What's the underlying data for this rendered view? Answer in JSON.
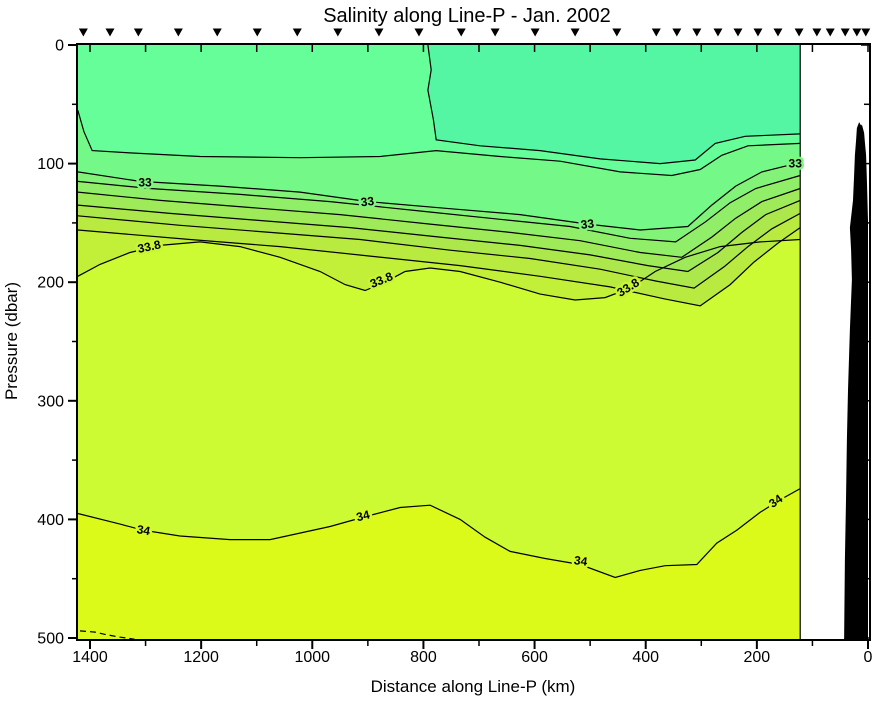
{
  "title": "Salinity along Line-P - Jan. 2002",
  "chart_data": {
    "type": "heatmap",
    "variant": "filled-contour-section",
    "title": "Salinity along Line-P - Jan. 2002",
    "xlabel": "Distance along Line-P (km)",
    "ylabel": "Pressure (dbar)",
    "x_axis": {
      "label": "Distance along Line-P (km)",
      "min": 0,
      "max": 1400,
      "reversed": true,
      "major_ticks": [
        1400,
        1200,
        1000,
        800,
        600,
        400,
        200,
        0
      ],
      "minor_tick_step": 100
    },
    "y_axis": {
      "label": "Pressure (dbar)",
      "min": 0,
      "max": 500,
      "inverted": true,
      "major_ticks": [
        0,
        100,
        200,
        300,
        400,
        500
      ],
      "minor_tick_step": 50
    },
    "grid": false,
    "legend": false,
    "section_data_edge_km": 122,
    "station_markers_km": [
      1412,
      1364,
      1313,
      1241,
      1171,
      1099,
      1027,
      954,
      880,
      808,
      732,
      671,
      599,
      527,
      452,
      381,
      344,
      308,
      270,
      234,
      198,
      162,
      124,
      92,
      68,
      41,
      20,
      4
    ],
    "contour_levels_labeled": [
      "33",
      "33.8",
      "34"
    ],
    "base_fill": "#DCFA1A",
    "contours": [
      {
        "id": "c0",
        "level": "",
        "points": [
          [
            792,
            0
          ],
          [
            786,
            21
          ],
          [
            792,
            38
          ],
          [
            782,
            63
          ],
          [
            777,
            80
          ],
          [
            698,
            85
          ],
          [
            590,
            89
          ],
          [
            482,
            96
          ],
          [
            374,
            100
          ],
          [
            311,
            97
          ],
          [
            275,
            83
          ],
          [
            221,
            77
          ],
          [
            122,
            75
          ]
        ]
      },
      {
        "id": "c1",
        "level": "",
        "points": [
          [
            1422,
            55
          ],
          [
            1411,
            73
          ],
          [
            1396,
            89
          ],
          [
            1328,
            91
          ],
          [
            1202,
            94
          ],
          [
            1022,
            95
          ],
          [
            878,
            94
          ],
          [
            777,
            89
          ],
          [
            662,
            94
          ],
          [
            554,
            98
          ],
          [
            446,
            107
          ],
          [
            353,
            110
          ],
          [
            302,
            105
          ],
          [
            263,
            93
          ],
          [
            216,
            85
          ],
          [
            122,
            83
          ]
        ]
      },
      {
        "id": "c2",
        "level": "33",
        "points": [
          [
            1422,
            107
          ],
          [
            1310,
            115
          ],
          [
            1166,
            119
          ],
          [
            1022,
            124
          ],
          [
            900,
            132
          ],
          [
            752,
            138
          ],
          [
            626,
            143
          ],
          [
            504,
            151
          ],
          [
            410,
            156
          ],
          [
            324,
            153
          ],
          [
            281,
            135
          ],
          [
            238,
            119
          ],
          [
            191,
            107
          ],
          [
            122,
            99
          ]
        ]
      },
      {
        "id": "c3",
        "level": "",
        "points": [
          [
            1422,
            115
          ],
          [
            1292,
            121
          ],
          [
            1130,
            126
          ],
          [
            968,
            132
          ],
          [
            806,
            140
          ],
          [
            662,
            147
          ],
          [
            536,
            153
          ],
          [
            428,
            163
          ],
          [
            346,
            166
          ],
          [
            292,
            149
          ],
          [
            248,
            133
          ],
          [
            202,
            121
          ],
          [
            122,
            110
          ]
        ]
      },
      {
        "id": "c4",
        "level": "",
        "points": [
          [
            1422,
            124
          ],
          [
            1274,
            131
          ],
          [
            1112,
            137
          ],
          [
            950,
            143
          ],
          [
            788,
            151
          ],
          [
            644,
            158
          ],
          [
            518,
            165
          ],
          [
            410,
            175
          ],
          [
            335,
            179
          ],
          [
            281,
            162
          ],
          [
            238,
            146
          ],
          [
            191,
            132
          ],
          [
            122,
            121
          ]
        ]
      },
      {
        "id": "c5",
        "level": "",
        "points": [
          [
            1422,
            135
          ],
          [
            1256,
            142
          ],
          [
            1094,
            148
          ],
          [
            932,
            154
          ],
          [
            770,
            162
          ],
          [
            626,
            169
          ],
          [
            500,
            177
          ],
          [
            396,
            186
          ],
          [
            324,
            191
          ],
          [
            270,
            175
          ],
          [
            227,
            158
          ],
          [
            184,
            143
          ],
          [
            122,
            131
          ]
        ]
      },
      {
        "id": "c6",
        "level": "",
        "points": [
          [
            1422,
            144
          ],
          [
            1238,
            152
          ],
          [
            1076,
            158
          ],
          [
            914,
            164
          ],
          [
            752,
            173
          ],
          [
            608,
            180
          ],
          [
            482,
            189
          ],
          [
            382,
            199
          ],
          [
            313,
            205
          ],
          [
            259,
            187
          ],
          [
            216,
            170
          ],
          [
            173,
            155
          ],
          [
            122,
            142
          ]
        ]
      },
      {
        "id": "c7",
        "level": "",
        "points": [
          [
            1422,
            156
          ],
          [
            1220,
            164
          ],
          [
            1058,
            170
          ],
          [
            896,
            178
          ],
          [
            734,
            186
          ],
          [
            590,
            195
          ],
          [
            464,
            204
          ],
          [
            367,
            214
          ],
          [
            302,
            220
          ],
          [
            248,
            202
          ],
          [
            205,
            183
          ],
          [
            162,
            167
          ],
          [
            122,
            154
          ]
        ]
      },
      {
        "id": "c338",
        "level": "33.8",
        "points": [
          [
            1422,
            195
          ],
          [
            1382,
            185
          ],
          [
            1328,
            175
          ],
          [
            1274,
            169
          ],
          [
            1202,
            166
          ],
          [
            1130,
            170
          ],
          [
            1058,
            179
          ],
          [
            986,
            191
          ],
          [
            941,
            202
          ],
          [
            905,
            207
          ],
          [
            869,
            200
          ],
          [
            833,
            191
          ],
          [
            788,
            188
          ],
          [
            734,
            191
          ],
          [
            662,
            200
          ],
          [
            590,
            210
          ],
          [
            527,
            215
          ],
          [
            473,
            213
          ],
          [
            428,
            205
          ],
          [
            383,
            191
          ],
          [
            329,
            179
          ],
          [
            266,
            170
          ],
          [
            194,
            166
          ],
          [
            122,
            164
          ]
        ]
      },
      {
        "id": "c34",
        "level": "34",
        "points": [
          [
            1422,
            395
          ],
          [
            1346,
            404
          ],
          [
            1305,
            409
          ],
          [
            1238,
            414
          ],
          [
            1148,
            417
          ],
          [
            1076,
            417
          ],
          [
            968,
            406
          ],
          [
            907,
            398
          ],
          [
            842,
            390
          ],
          [
            788,
            388
          ],
          [
            734,
            400
          ],
          [
            689,
            415
          ],
          [
            644,
            427
          ],
          [
            581,
            433
          ],
          [
            518,
            438
          ],
          [
            455,
            449
          ],
          [
            410,
            443
          ],
          [
            365,
            439
          ],
          [
            308,
            438
          ],
          [
            272,
            420
          ],
          [
            236,
            409
          ],
          [
            194,
            394
          ],
          [
            160,
            384
          ],
          [
            122,
            374
          ]
        ]
      },
      {
        "id": "c342",
        "level": "",
        "dashed": true,
        "points": [
          [
            1418,
            494
          ],
          [
            1391,
            495
          ],
          [
            1373,
            497
          ],
          [
            1350,
            499
          ],
          [
            1320,
            501
          ]
        ]
      }
    ],
    "bands": [
      {
        "above": "c34",
        "fill": "#CCFB33"
      },
      {
        "above": "c338",
        "fill": "#C2F039"
      },
      {
        "above": "c7",
        "fill": "#B8EA40"
      },
      {
        "above": "c6",
        "fill": "#ACE74B"
      },
      {
        "above": "c5",
        "fill": "#9EEA58"
      },
      {
        "above": "c4",
        "fill": "#90EE68"
      },
      {
        "above": "c3",
        "fill": "#82F378"
      },
      {
        "above": "c2",
        "fill": "#74F888"
      },
      {
        "above": "c1",
        "fill": "#66FE98"
      },
      {
        "above": "c0",
        "fill": "#55F6A3"
      }
    ],
    "contour_labels": [
      {
        "text": "33",
        "km": 1301,
        "dbar": 116,
        "rot": 0,
        "halo": "#7EF57E"
      },
      {
        "text": "33",
        "km": 900,
        "dbar": 132,
        "rot": -7,
        "halo": "#7EF57E"
      },
      {
        "text": "33",
        "km": 504,
        "dbar": 151,
        "rot": -7,
        "halo": "#7EF57E"
      },
      {
        "text": "33",
        "km": 131,
        "dbar": 100,
        "rot": 0,
        "halo": "#7EF57E"
      },
      {
        "text": "33.8",
        "km": 1292,
        "dbar": 170,
        "rot": -12,
        "halo": "#C7F536"
      },
      {
        "text": "33.8",
        "km": 873,
        "dbar": 198,
        "rot": -22,
        "halo": "#C7F536"
      },
      {
        "text": "33.8",
        "km": 428,
        "dbar": 204,
        "rot": -32,
        "halo": "#C7F536"
      },
      {
        "text": "34",
        "km": 1305,
        "dbar": 409,
        "rot": 10,
        "halo": "#D4FB27"
      },
      {
        "text": "34",
        "km": 907,
        "dbar": 397,
        "rot": -14,
        "halo": "#D4FB27"
      },
      {
        "text": "34",
        "km": 518,
        "dbar": 435,
        "rot": 8,
        "halo": "#D4FB27"
      },
      {
        "text": "34",
        "km": 162,
        "dbar": 384,
        "rot": -35,
        "halo": "#D4FB27"
      }
    ],
    "bathymetry_outline": [
      [
        43,
        502
      ],
      [
        41.5,
        434
      ],
      [
        39.5,
        384
      ],
      [
        38,
        333
      ],
      [
        36,
        291
      ],
      [
        32.5,
        240
      ],
      [
        29,
        198
      ],
      [
        30.5,
        173
      ],
      [
        32.5,
        154
      ],
      [
        27,
        131
      ],
      [
        25,
        110
      ],
      [
        23.5,
        93
      ],
      [
        21.5,
        80
      ],
      [
        20,
        70
      ],
      [
        16,
        65
      ],
      [
        12.5,
        68
      ],
      [
        11,
        67
      ],
      [
        7,
        74
      ],
      [
        5.5,
        82
      ],
      [
        3.5,
        93
      ],
      [
        2,
        114
      ],
      [
        0,
        148
      ],
      [
        0,
        502
      ]
    ],
    "bathymetry_fill": "#000000",
    "marker_color": "#000000",
    "contour_line_color": "#000000"
  }
}
